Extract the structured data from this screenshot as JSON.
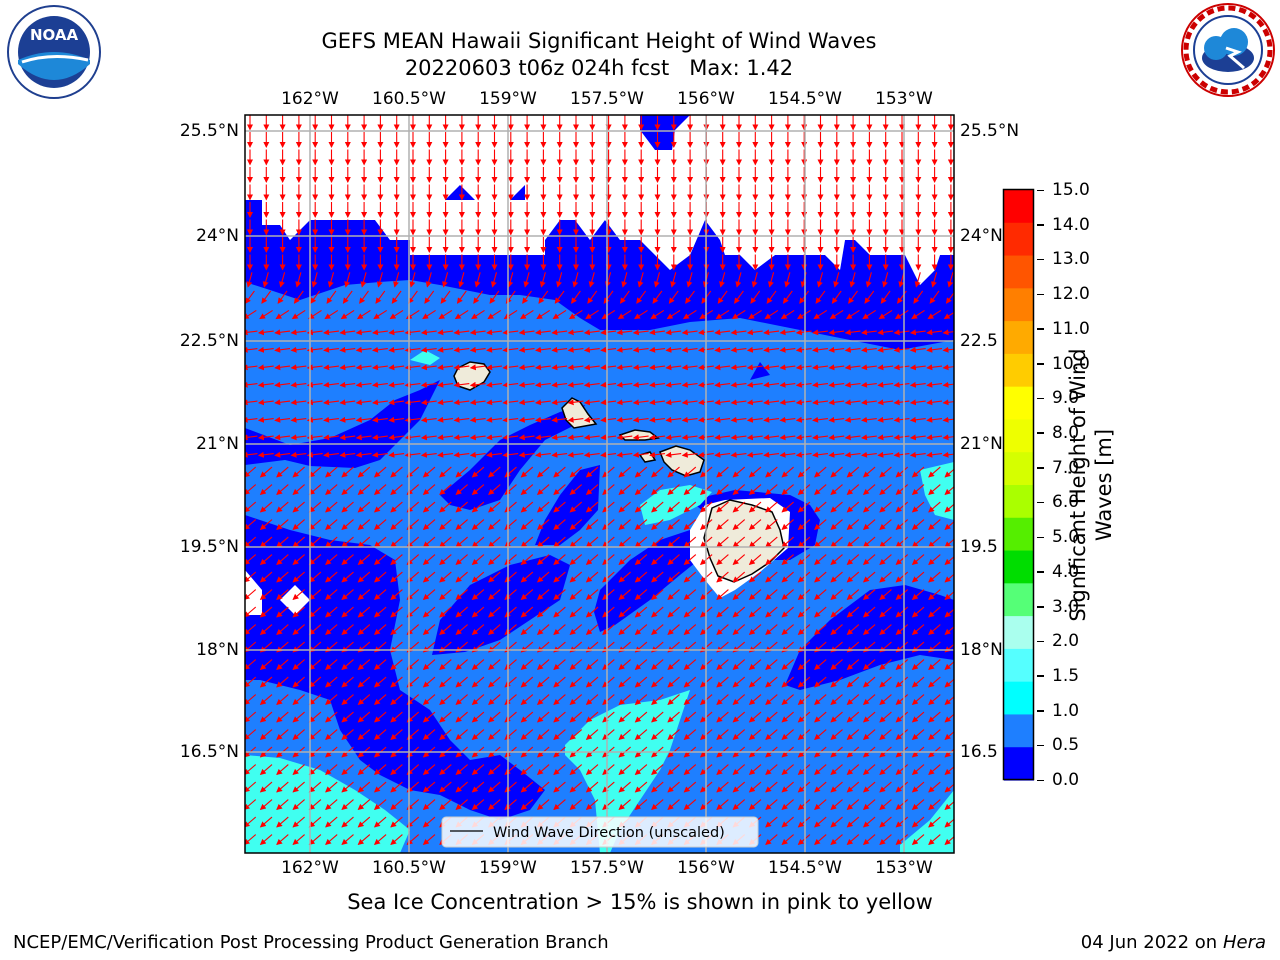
{
  "title": {
    "line1": "GEFS MEAN Hawaii Significant Height of Wind Waves",
    "line2": "20220603 t06z 024h fcst   Max: 1.42"
  },
  "logos": {
    "noaa": "NOAA",
    "noaa_ring": "NATIONAL OCEANIC AND ATMOSPHERIC ADMINISTRATION · U.S. DEPARTMENT OF COMMERCE",
    "nws_ring": "NATIONAL WEATHER SERVICE"
  },
  "map": {
    "lon_labels": [
      "162°W",
      "160.5°W",
      "159°W",
      "157.5°W",
      "156°W",
      "154.5°W",
      "153°W"
    ],
    "lat_labels": [
      "25.5°N",
      "24°N",
      "22.5°N",
      "21°N",
      "19.5°N",
      "18°N",
      "16.5°N"
    ],
    "right_lat_labels": [
      "25.5°N",
      "24°N",
      "22.5",
      "21°N",
      "19.5",
      "18°N",
      "16.5"
    ],
    "legend": "Wind Wave Direction (unscaled)",
    "colors": {
      "bin_0_0_5": "#0000ff",
      "bin_0_5_1_0": "#1e7fff",
      "bin_1_0_1_5": "#00e0f0",
      "bin_1_5_2_0": "#40fff0",
      "land": "#efebda",
      "arrows": "#ff0000",
      "grid": "#b0b0b0"
    }
  },
  "colorbar": {
    "label_line1": "Significant Height of Wind",
    "label_line2": "Waves [m]",
    "ticks": [
      "15.0",
      "14.0",
      "13.0",
      "12.0",
      "11.0",
      "10.0",
      "9.0",
      "8.0",
      "7.0",
      "6.0",
      "5.0",
      "4.0",
      "3.0",
      "2.0",
      "1.5",
      "1.0",
      "0.5",
      "0.0"
    ],
    "colors_top_to_bottom": [
      "#ff0000",
      "#ff2a00",
      "#ff5500",
      "#ff7f00",
      "#ffaa00",
      "#ffcc00",
      "#ffff00",
      "#eeff00",
      "#d5ff00",
      "#aaff00",
      "#55ee00",
      "#00dd00",
      "#55ff77",
      "#aaffee",
      "#55ffff",
      "#00ffff",
      "#1e7fff",
      "#0000ff"
    ]
  },
  "note": "Sea Ice Concentration > 15% is shown in pink to yellow",
  "footer": {
    "left": "NCEP/EMC/Verification Post Processing Product Generation Branch",
    "right_prefix": "04 Jun 2022 on",
    "right_host": "Hera"
  }
}
